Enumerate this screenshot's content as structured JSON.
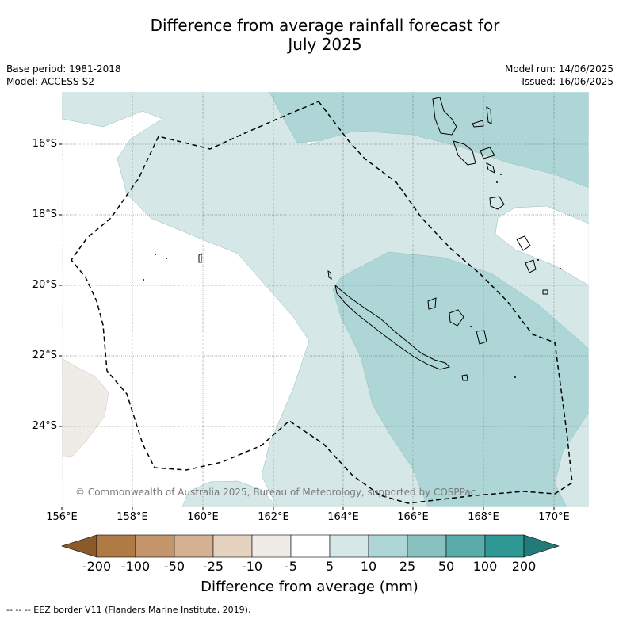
{
  "title_line1": "Difference from average rainfall forecast for",
  "title_line2": "July 2025",
  "base_period": "Base period: 1981-2018",
  "model": "Model: ACCESS-S2",
  "model_run": "Model run: 14/06/2025",
  "issued": "Issued: 16/06/2025",
  "lat_labels": [
    "16°S",
    "18°S",
    "20°S",
    "22°S",
    "24°S"
  ],
  "lon_labels": [
    "156°E",
    "158°E",
    "160°E",
    "162°E",
    "164°E",
    "166°E",
    "168°E",
    "170°E"
  ],
  "credit": "© Commonwealth of Australia 2025, Bureau of Meteorology, supported by COSPPac",
  "colorbar": {
    "ticks": [
      "-200",
      "-100",
      "-50",
      "-25",
      "-10",
      "-5",
      "5",
      "10",
      "25",
      "50",
      "100",
      "200"
    ],
    "colors": [
      "#8b5a2b",
      "#b07a45",
      "#c4956a",
      "#d5b293",
      "#e5d3c0",
      "#efece7",
      "#ffffff",
      "#d5e8e7",
      "#aed6d6",
      "#88c1c0",
      "#5aacab",
      "#2f9794",
      "#237a78"
    ],
    "title": "Difference from average (mm)"
  },
  "footnote": "--  --  -- EEZ border V11 (Flanders Marine Institute, 2019)."
}
